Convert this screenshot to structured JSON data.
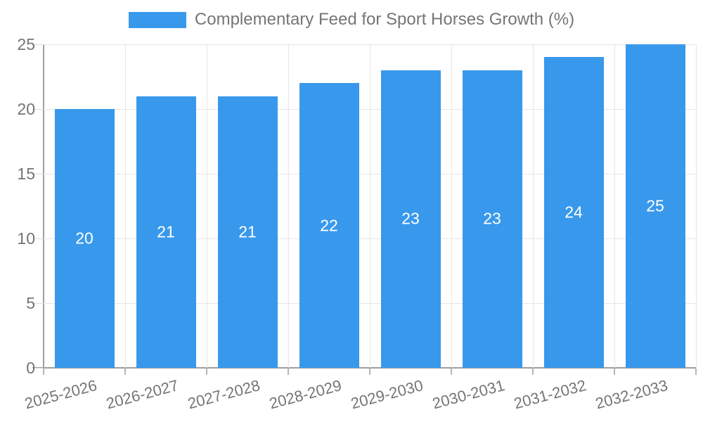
{
  "chart_data": {
    "type": "bar",
    "title": "Complementary Feed for Sport Horses Growth (%)",
    "series_label": "Complementary Feed for Sport Horses Growth (%)",
    "categories": [
      "2025-2026",
      "2026-2027",
      "2027-2028",
      "2028-2029",
      "2029-2030",
      "2030-2031",
      "2031-2032",
      "2032-2033"
    ],
    "values": [
      20,
      21,
      21,
      22,
      23,
      23,
      24,
      25
    ],
    "xlabel": "",
    "ylabel": "",
    "ylim": [
      0,
      25
    ],
    "yticks": [
      0,
      5,
      10,
      15,
      20,
      25
    ],
    "grid": true,
    "legend_position": "top",
    "bar_color": "#3899ec",
    "value_label_color": "#ffffff",
    "axis_text_color": "#757575",
    "gridline_color": "#e6e6e6",
    "axis_line_color": "#9e9e9e"
  }
}
